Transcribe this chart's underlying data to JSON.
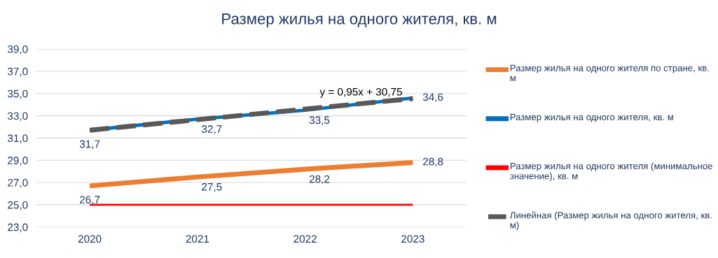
{
  "chart_data": {
    "type": "line",
    "title": "Размер жилья на одного жителя, кв. м",
    "categories": [
      "2020",
      "2021",
      "2022",
      "2023"
    ],
    "series": [
      {
        "name": "Размер жилья на одного жителя по стране, кв. м",
        "color": "#ed7d31",
        "values": [
          26.7,
          27.5,
          28.2,
          28.8
        ],
        "value_labels": [
          "26,7",
          "27,5",
          "28,2",
          "28,8"
        ]
      },
      {
        "name": "Размер жилья на одного жителя, кв. м",
        "color": "#0070c0",
        "values": [
          31.7,
          32.7,
          33.5,
          34.6
        ],
        "value_labels": [
          "31,7",
          "32,7",
          "33,5",
          "34,6"
        ]
      },
      {
        "name": "Размер жилья на одного жителя (минимальное значение), кв. м",
        "color": "#ff0000",
        "values": [
          25,
          25,
          25,
          25
        ]
      },
      {
        "name": "Линейная (Размер жилья на одного жителя, кв. м)",
        "color": "#595959",
        "values": [
          31.7,
          32.65,
          33.6,
          34.55
        ],
        "line_style": "dashed"
      }
    ],
    "annotations": [
      {
        "text": "y = 0,95x + 30,75",
        "x": "2022",
        "y": 33.6
      }
    ],
    "ylim": [
      23,
      39
    ],
    "yticks": [
      {
        "value": 23,
        "label": "23,0"
      },
      {
        "value": 25,
        "label": "25,0"
      },
      {
        "value": 27,
        "label": "27,0"
      },
      {
        "value": 29,
        "label": "29,0"
      },
      {
        "value": 31,
        "label": "31,0"
      },
      {
        "value": 33,
        "label": "33,0"
      },
      {
        "value": 35,
        "label": "35,0"
      },
      {
        "value": 37,
        "label": "37,0"
      },
      {
        "value": 39,
        "label": "39,0"
      }
    ],
    "grid": "y",
    "legend": "right",
    "marker": "none"
  }
}
